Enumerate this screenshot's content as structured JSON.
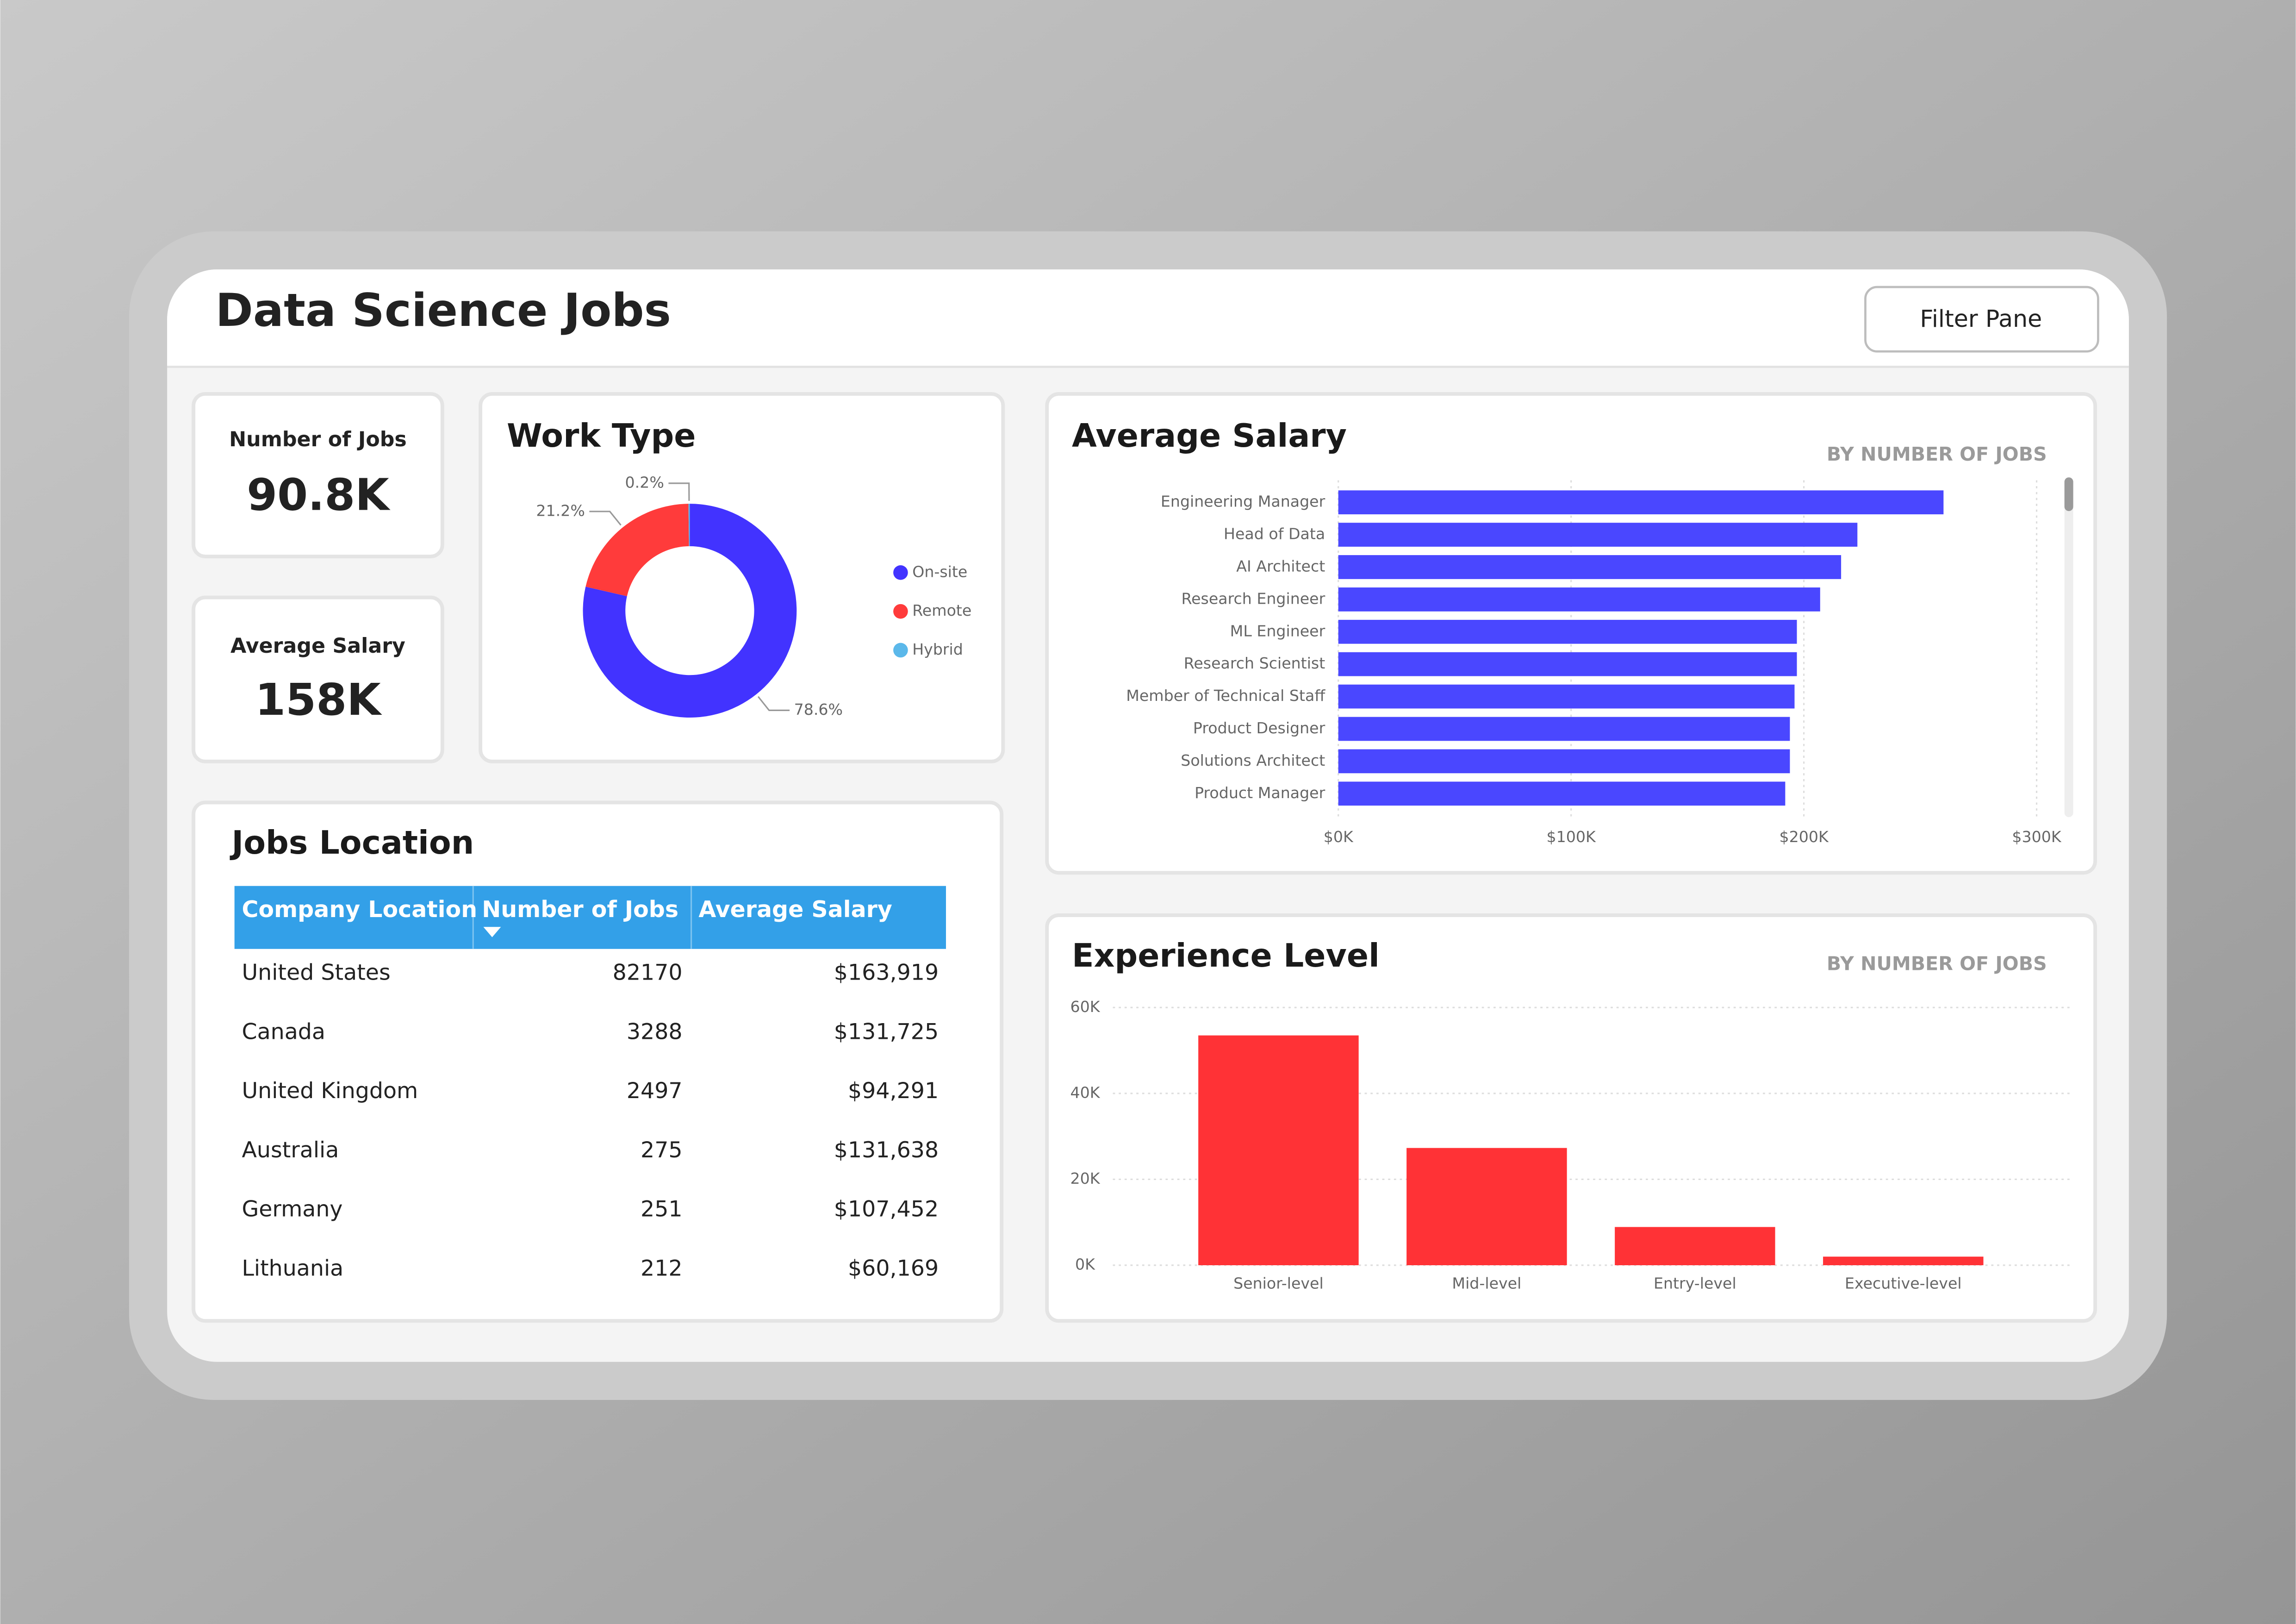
{
  "header": {
    "title": "Data Science Jobs",
    "button": "Filter Pane"
  },
  "kpis": [
    {
      "label": "Number of Jobs",
      "value": "90.8K"
    },
    {
      "label": "Average Salary",
      "value": "158K"
    }
  ],
  "table": {
    "title": "Jobs Location",
    "columns": [
      "Company Location",
      "Number of Jobs",
      "Average Salary"
    ],
    "rows": [
      [
        "United States",
        82170,
        "$163,919"
      ],
      [
        "Canada",
        3288,
        "$131,725"
      ],
      [
        "United Kingdom",
        2497,
        "$94,291"
      ],
      [
        "Australia",
        275,
        "$131,638"
      ],
      [
        "Germany",
        251,
        "$107,452"
      ],
      [
        "Lithuania",
        212,
        "$60,169"
      ]
    ]
  },
  "chart_data": [
    {
      "type": "pie",
      "title": "Work Type",
      "donut": true,
      "categories": [
        "On-site",
        "Remote",
        "Hybrid"
      ],
      "values": [
        78.6,
        21.2,
        0.2
      ],
      "value_labels": [
        "78.6%",
        "21.2%",
        "0.2%"
      ],
      "colors": [
        "#4233ff",
        "#ff3b3b",
        "#5bb8ea"
      ],
      "legend": "right"
    },
    {
      "type": "bar",
      "orientation": "horizontal",
      "title": "Average Salary",
      "subtitle": "BY NUMBER OF JOBS",
      "categories": [
        "Engineering Manager",
        "Head of Data",
        "AI Architect",
        "Research Engineer",
        "ML Engineer",
        "Research Scientist",
        "Member of Technical Staff",
        "Product Designer",
        "Solutions Architect",
        "Product Manager"
      ],
      "values": [
        260000,
        223000,
        216000,
        207000,
        197000,
        197000,
        196000,
        194000,
        194000,
        192000
      ],
      "color": "#4a47ff",
      "xlim": [
        0,
        300000
      ],
      "xticks": [
        {
          "value": 0,
          "label": "$0K"
        },
        {
          "value": 100000,
          "label": "$100K"
        },
        {
          "value": 200000,
          "label": "$200K"
        },
        {
          "value": 300000,
          "label": "$300K"
        }
      ],
      "grid": true
    },
    {
      "type": "bar",
      "orientation": "vertical",
      "title": "Experience Level",
      "subtitle": "BY NUMBER OF JOBS",
      "categories": [
        "Senior-level",
        "Mid-level",
        "Entry-level",
        "Executive-level"
      ],
      "values": [
        53500,
        27300,
        8900,
        2000
      ],
      "color": "#ff3236",
      "ylim": [
        0,
        60000
      ],
      "yticks": [
        {
          "value": 0,
          "label": "0K"
        },
        {
          "value": 20000,
          "label": "20K"
        },
        {
          "value": 40000,
          "label": "40K"
        },
        {
          "value": 60000,
          "label": "60K"
        }
      ],
      "grid": true
    }
  ]
}
